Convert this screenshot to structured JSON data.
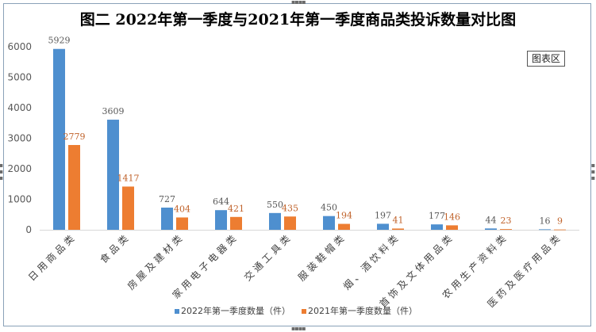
{
  "chart_data": {
    "type": "bar",
    "title": "图二 2022年第一季度与2021年第一季度商品类投诉数量对比图",
    "categories": [
      "日用商品类",
      "食品类",
      "房屋及建材类",
      "家用电子电器类",
      "交通工具类",
      "服装鞋帽类",
      "烟、酒饮料类",
      "首饰及文体用品类",
      "农用生产资料类",
      "医药及医疗用品类"
    ],
    "series": [
      {
        "name": "2022年第一季度数量（件）",
        "color": "#4e8fcf",
        "values": [
          5929,
          3609,
          727,
          644,
          550,
          450,
          197,
          177,
          44,
          16
        ]
      },
      {
        "name": "2021年第一季度数量（件）",
        "color": "#ed7d31",
        "values": [
          2779,
          1417,
          404,
          421,
          435,
          194,
          41,
          146,
          23,
          9
        ]
      }
    ],
    "yticks": [
      0,
      1000,
      2000,
      3000,
      4000,
      5000,
      6000
    ],
    "ylim": [
      0,
      6000
    ],
    "grid": false,
    "legend": "bottom",
    "data_label_colors": [
      "#595959",
      "#c0622a"
    ]
  },
  "badge": "图表区"
}
